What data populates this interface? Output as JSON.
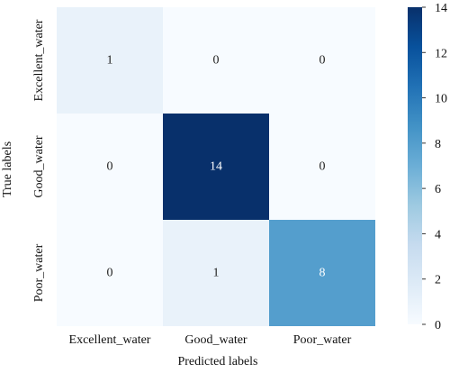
{
  "chart_data": {
    "type": "heatmap",
    "row_labels": [
      "Excellent_water",
      "Good_water",
      "Poor_water"
    ],
    "col_labels": [
      "Excellent_water",
      "Good_water",
      "Poor_water"
    ],
    "values": [
      [
        1,
        0,
        0
      ],
      [
        0,
        14,
        0
      ],
      [
        0,
        1,
        8
      ]
    ],
    "xlabel": "Predicted labels",
    "ylabel": "True labels",
    "colorbar": {
      "min": 0,
      "max": 14,
      "ticks": [
        0,
        2,
        4,
        6,
        8,
        10,
        12,
        14
      ],
      "colormap": "Blues",
      "low_color": "#f7fbff",
      "high_color": "#08306b"
    }
  }
}
